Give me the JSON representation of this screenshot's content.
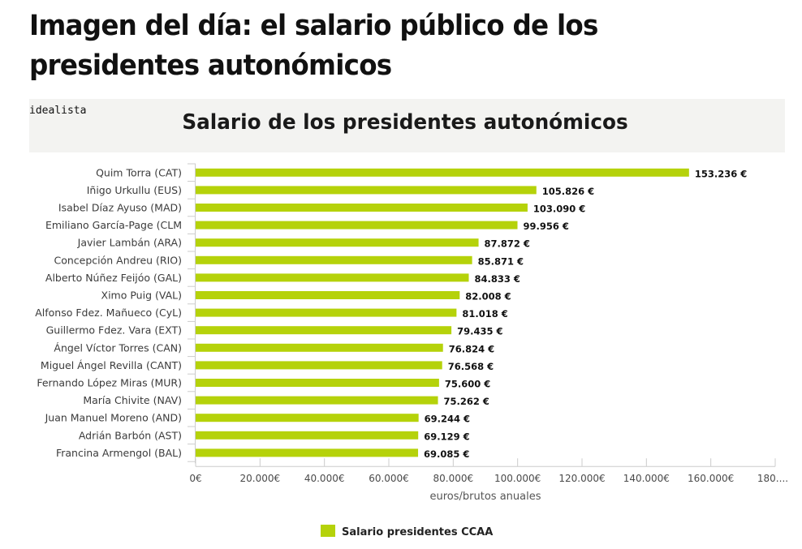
{
  "article": {
    "headline": "Imagen del día: el salario público de los presidentes autonómicos"
  },
  "chart_header": {
    "brand": "idealista",
    "title": "Salario de los presidentes autonómicos"
  },
  "colors": {
    "bar": "#b5d20a",
    "panel_background": "#f3f3f1"
  },
  "chart_data": {
    "type": "bar",
    "orientation": "horizontal",
    "title": "Salario de los presidentes autonómicos",
    "xlabel": "euros/brutos anuales",
    "ylabel": "",
    "xlim": [
      0,
      180000
    ],
    "x_ticks": [
      0,
      20000,
      40000,
      60000,
      80000,
      100000,
      120000,
      140000,
      160000,
      180000
    ],
    "x_tick_labels": [
      "0€",
      "20.000€",
      "40.000€",
      "60.000€",
      "80.000€",
      "100.000€",
      "120.000€",
      "140.000€",
      "160.000€",
      "180...."
    ],
    "grid": false,
    "legend": {
      "position": "bottom",
      "entries": [
        "Salario presidentes CCAA"
      ]
    },
    "categories": [
      "Quim Torra (CAT)",
      "Iñigo Urkullu (EUS)",
      "Isabel Díaz Ayuso (MAD)",
      "Emiliano García-Page (CLM",
      "Javier Lambán (ARA)",
      "Concepción Andreu (RIO)",
      "Alberto Núñez Feijóo (GAL)",
      "Ximo Puig (VAL)",
      "Alfonso Fdez. Mañueco (CyL)",
      "Guillermo Fdez. Vara (EXT)",
      "Ángel Víctor Torres (CAN)",
      "Miguel Ángel Revilla (CANT)",
      "Fernando López Miras (MUR)",
      "María Chivite (NAV)",
      "Juan Manuel Moreno (AND)",
      "Adrián Barbón (AST)",
      "Francina Armengol (BAL)"
    ],
    "series": [
      {
        "name": "Salario presidentes CCAA",
        "color": "#b5d20a",
        "values": [
          153236,
          105826,
          103090,
          99956,
          87872,
          85871,
          84833,
          82008,
          81018,
          79435,
          76824,
          76568,
          75600,
          75262,
          69244,
          69129,
          69085
        ],
        "data_labels": [
          "153.236 €",
          "105.826 €",
          "103.090 €",
          "99.956 €",
          "87.872 €",
          "85.871 €",
          "84.833 €",
          "82.008 €",
          "81.018 €",
          "79.435 €",
          "76.824 €",
          "76.568 €",
          "75.600 €",
          "75.262 €",
          "69.244 €",
          "69.129 €",
          "69.085 €"
        ]
      }
    ]
  }
}
